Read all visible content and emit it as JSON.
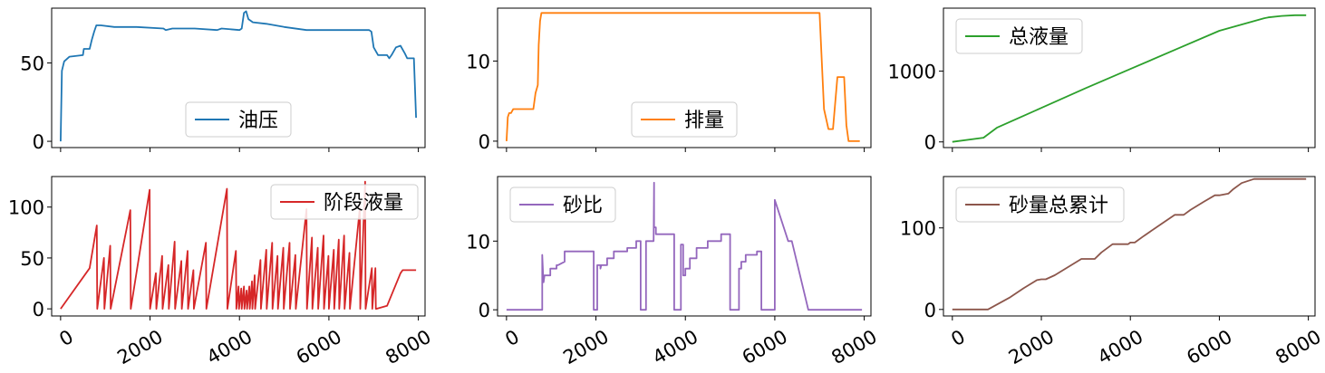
{
  "chart_data": [
    {
      "type": "line",
      "xlim": [
        -200,
        8150
      ],
      "ylim": [
        -4,
        85
      ],
      "yticks": [
        0,
        50
      ],
      "ytick_labels": [
        "0",
        "50"
      ],
      "legend": "lower-center",
      "series": [
        {
          "name": "油压",
          "color": "#1f77b4",
          "x": [
            0,
            30,
            80,
            200,
            500,
            520,
            650,
            700,
            750,
            800,
            900,
            1200,
            1700,
            2300,
            2350,
            2500,
            3000,
            3500,
            3600,
            4000,
            4050,
            4100,
            4150,
            4200,
            4300,
            4600,
            5000,
            5500,
            5800,
            6300,
            6700,
            6900,
            6950,
            7000,
            7100,
            7300,
            7350,
            7400,
            7500,
            7600,
            7700,
            7750,
            7800,
            7850,
            7900,
            7950
          ],
          "y": [
            0,
            45,
            51,
            54,
            55,
            59,
            59,
            65,
            70,
            74,
            74,
            73,
            73,
            72,
            71,
            72,
            72,
            71,
            72,
            71,
            72,
            82,
            83,
            78,
            76,
            75,
            73,
            71,
            71,
            71,
            71,
            71,
            70,
            60,
            55,
            55,
            53,
            55,
            60,
            61,
            56,
            53,
            53,
            53,
            53,
            15
          ]
        }
      ]
    },
    {
      "type": "line",
      "xlim": [
        -200,
        8150
      ],
      "ylim": [
        -0.8,
        16.6
      ],
      "yticks": [
        0,
        10
      ],
      "ytick_labels": [
        "0",
        "10"
      ],
      "legend": "lower-center",
      "series": [
        {
          "name": "排量",
          "color": "#ff7f0e",
          "x": [
            0,
            30,
            60,
            100,
            150,
            200,
            250,
            300,
            350,
            600,
            650,
            700,
            720,
            750,
            780,
            3000,
            6000,
            7000,
            7100,
            7200,
            7250,
            7300,
            7400,
            7500,
            7550,
            7600,
            7650,
            7700,
            7750,
            7800,
            7900
          ],
          "y": [
            0,
            3,
            3.5,
            3.5,
            4,
            4,
            4,
            4,
            4,
            4,
            6,
            7,
            12,
            15,
            16,
            16,
            16,
            16,
            4,
            1.5,
            1.5,
            1.5,
            8,
            8,
            8,
            2,
            0,
            0,
            0,
            0,
            0
          ]
        }
      ]
    },
    {
      "type": "line",
      "xlim": [
        -200,
        8150
      ],
      "ylim": [
        -80,
        1890
      ],
      "yticks": [
        0,
        1000
      ],
      "ytick_labels": [
        "0",
        "1000"
      ],
      "legend": "upper-left",
      "series": [
        {
          "name": "总液量",
          "color": "#2ca02c",
          "x": [
            0,
            700,
            1000,
            2000,
            3000,
            4000,
            5000,
            6000,
            7000,
            7100,
            7400,
            7700,
            7950
          ],
          "y": [
            0,
            60,
            200,
            480,
            760,
            1030,
            1300,
            1570,
            1745,
            1760,
            1780,
            1790,
            1790
          ]
        }
      ]
    },
    {
      "type": "line",
      "xlim": [
        -200,
        8150
      ],
      "ylim": [
        -7,
        130
      ],
      "xticks": [
        0,
        2000,
        4000,
        6000,
        8000
      ],
      "xtick_labels": [
        "0",
        "2000",
        "4000",
        "6000",
        "8000"
      ],
      "yticks": [
        0,
        50,
        100
      ],
      "ytick_labels": [
        "0",
        "50",
        "100"
      ],
      "legend": "upper-right",
      "series": [
        {
          "name": "阶段液量",
          "color": "#d62728",
          "x": [
            0,
            650,
            810,
            820,
            970,
            980,
            1110,
            1120,
            1560,
            1570,
            1990,
            2000,
            2130,
            2140,
            2270,
            2280,
            2410,
            2420,
            2550,
            2560,
            2700,
            2710,
            2840,
            2850,
            2970,
            2980,
            3250,
            3260,
            3720,
            3730,
            3920,
            3930,
            3980,
            3990,
            4040,
            4050,
            4100,
            4110,
            4160,
            4170,
            4220,
            4230,
            4280,
            4290,
            4340,
            4350,
            4470,
            4480,
            4600,
            4610,
            4730,
            4740,
            4850,
            4860,
            4980,
            4990,
            5120,
            5130,
            5250,
            5260,
            5500,
            5510,
            5620,
            5630,
            5750,
            5760,
            5880,
            5890,
            5990,
            6000,
            6110,
            6120,
            6220,
            6230,
            6340,
            6350,
            6460,
            6470,
            6690,
            6700,
            6810,
            6820,
            6960,
            6970,
            7040,
            7050,
            7060,
            7300,
            7600,
            7650,
            7950
          ],
          "y": [
            0,
            40,
            82,
            0,
            50,
            0,
            62,
            0,
            97,
            0,
            117,
            0,
            35,
            0,
            52,
            0,
            43,
            0,
            66,
            0,
            47,
            0,
            57,
            0,
            38,
            0,
            65,
            0,
            118,
            0,
            57,
            0,
            22,
            0,
            20,
            0,
            22,
            0,
            18,
            0,
            22,
            0,
            27,
            0,
            33,
            0,
            48,
            0,
            58,
            0,
            65,
            0,
            52,
            0,
            60,
            0,
            65,
            0,
            53,
            0,
            98,
            0,
            70,
            0,
            60,
            0,
            72,
            0,
            52,
            0,
            58,
            0,
            68,
            0,
            72,
            0,
            55,
            0,
            99,
            0,
            125,
            0,
            40,
            0,
            40,
            0,
            0,
            3,
            35,
            38,
            38
          ]
        }
      ]
    },
    {
      "type": "line",
      "xlim": [
        -200,
        8150
      ],
      "ylim": [
        -0.9,
        19.4
      ],
      "xticks": [
        0,
        2000,
        4000,
        6000,
        8000
      ],
      "xtick_labels": [
        "0",
        "2000",
        "4000",
        "6000",
        "8000"
      ],
      "yticks": [
        0,
        10
      ],
      "ytick_labels": [
        "0",
        "10"
      ],
      "legend": "upper-left",
      "series": [
        {
          "name": "砂比",
          "color": "#9467bd",
          "x": [
            0,
            800,
            800,
            820,
            830,
            830,
            850,
            980,
            980,
            1000,
            1120,
            1120,
            1150,
            1300,
            1300,
            1550,
            1550,
            1950,
            1950,
            2030,
            2030,
            2100,
            2100,
            2120,
            2250,
            2250,
            2400,
            2400,
            2700,
            2700,
            2900,
            2900,
            3000,
            3000,
            3120,
            3120,
            3290,
            3300,
            3300,
            3340,
            3340,
            3380,
            3750,
            3750,
            3900,
            3900,
            3950,
            3950,
            4000,
            4000,
            4100,
            4100,
            4250,
            4250,
            4500,
            4500,
            4800,
            4800,
            5000,
            5000,
            5200,
            5200,
            5250,
            5250,
            5350,
            5350,
            5600,
            5600,
            5700,
            5700,
            6000,
            6000,
            6300,
            6300,
            6340,
            6340,
            6380,
            6380,
            6750,
            6750,
            7950
          ],
          "y": [
            0,
            0,
            8,
            5,
            5,
            4,
            5,
            5,
            6,
            6,
            6,
            6.5,
            6.5,
            7,
            8.5,
            8.5,
            8.5,
            8.5,
            0,
            0,
            6.5,
            6.5,
            6,
            6.5,
            6.5,
            7.5,
            7.5,
            8.5,
            8.5,
            9,
            9,
            10,
            10,
            0,
            0,
            10,
            10,
            18.5,
            12,
            12,
            11,
            11,
            11,
            0,
            0,
            9.5,
            9.5,
            5,
            5,
            6,
            6,
            7.5,
            7.5,
            9,
            9,
            10,
            10,
            11,
            11,
            0,
            0,
            6,
            6,
            7,
            7,
            8,
            8,
            8.5,
            8.5,
            0,
            0,
            16,
            10,
            10,
            10,
            10,
            10,
            10,
            0,
            0,
            0
          ]
        }
      ]
    },
    {
      "type": "line",
      "xlim": [
        -200,
        8150
      ],
      "ylim": [
        -8,
        163
      ],
      "xticks": [
        0,
        2000,
        4000,
        6000,
        8000
      ],
      "xtick_labels": [
        "0",
        "2000",
        "4000",
        "6000",
        "8000"
      ],
      "yticks": [
        0,
        100
      ],
      "ytick_labels": [
        "0",
        "100"
      ],
      "legend": "upper-left",
      "series": [
        {
          "name": "砂量总累计",
          "color": "#8c564b",
          "x": [
            0,
            800,
            1000,
            1300,
            1600,
            1900,
            2000,
            2100,
            2300,
            2600,
            2900,
            3000,
            3200,
            3350,
            3600,
            3800,
            3950,
            4000,
            4100,
            4300,
            4700,
            5000,
            5200,
            5350,
            5650,
            5900,
            6000,
            6200,
            6300,
            6500,
            6780,
            7000,
            7500,
            7950
          ],
          "y": [
            0,
            0,
            6,
            15,
            26,
            36,
            37,
            37,
            42,
            52,
            62,
            62,
            62,
            70,
            80,
            80,
            80,
            82,
            82,
            90,
            105,
            116,
            116,
            122,
            132,
            140,
            140,
            142,
            147,
            155,
            160,
            160,
            160,
            160
          ]
        }
      ]
    }
  ]
}
